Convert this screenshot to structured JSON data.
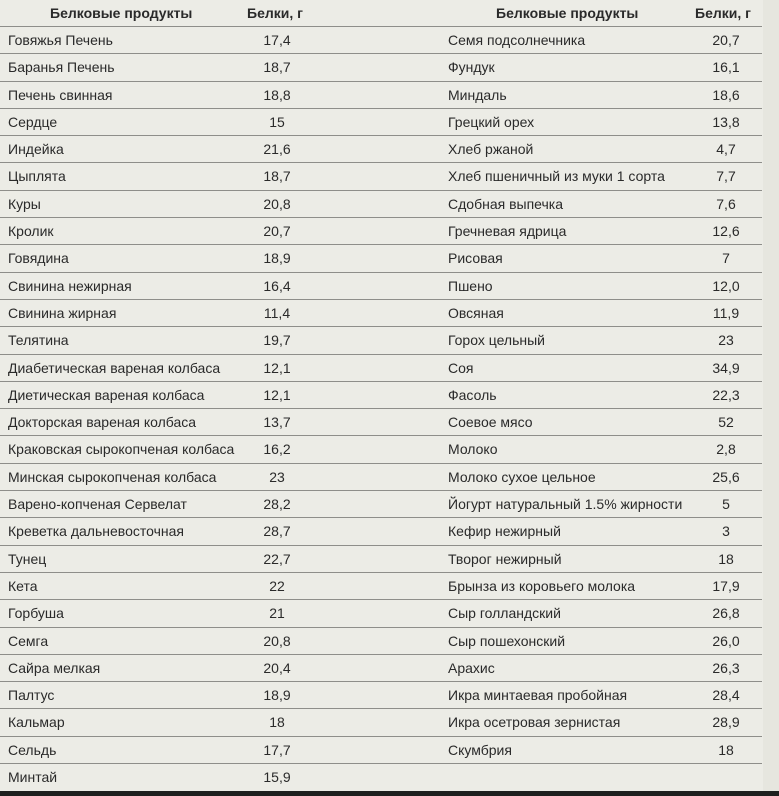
{
  "table": {
    "headers": {
      "left_product": "Белковые продукты",
      "left_protein": "Белки, г",
      "right_product": "Белковые продукты",
      "right_protein": "Белки, г"
    },
    "left": [
      {
        "name": "Говяжья Печень",
        "protein": "17,4"
      },
      {
        "name": "Баранья Печень",
        "protein": "18,7"
      },
      {
        "name": "Печень свинная",
        "protein": "18,8"
      },
      {
        "name": "Сердце",
        "protein": "15"
      },
      {
        "name": "Индейка",
        "protein": "21,6"
      },
      {
        "name": "Цыплята",
        "protein": "18,7"
      },
      {
        "name": "Куры",
        "protein": "20,8"
      },
      {
        "name": "Кролик",
        "protein": "20,7"
      },
      {
        "name": "Говядина",
        "protein": "18,9"
      },
      {
        "name": "Свинина нежирная",
        "protein": "16,4"
      },
      {
        "name": "Свинина жирная",
        "protein": "11,4"
      },
      {
        "name": "Телятина",
        "protein": "19,7"
      },
      {
        "name": "Диабетическая вареная колбаса",
        "protein": "12,1"
      },
      {
        "name": "Диетическая вареная колбаса",
        "protein": "12,1"
      },
      {
        "name": "Докторская вареная колбаса",
        "protein": "13,7"
      },
      {
        "name": "Краковская сырокопченая колбаса",
        "protein": "16,2"
      },
      {
        "name": "Минская сырокопченая колбаса",
        "protein": "23"
      },
      {
        "name": "Варено-копченая Сервелат",
        "protein": "28,2"
      },
      {
        "name": "Креветка дальневосточная",
        "protein": "28,7"
      },
      {
        "name": "Тунец",
        "protein": "22,7"
      },
      {
        "name": "Кета",
        "protein": "22"
      },
      {
        "name": "Горбуша",
        "protein": "21"
      },
      {
        "name": "Семга",
        "protein": "20,8"
      },
      {
        "name": "Сайра мелкая",
        "protein": "20,4"
      },
      {
        "name": "Палтус",
        "protein": "18,9"
      },
      {
        "name": "Кальмар",
        "protein": "18"
      },
      {
        "name": "Сельдь",
        "protein": "17,7"
      },
      {
        "name": "Минтай",
        "protein": "15,9"
      }
    ],
    "right": [
      {
        "name": "Семя подсолнечника",
        "protein": "20,7"
      },
      {
        "name": "Фундук",
        "protein": "16,1"
      },
      {
        "name": "Миндаль",
        "protein": "18,6"
      },
      {
        "name": "Грецкий орех",
        "protein": "13,8"
      },
      {
        "name": "Хлеб ржаной",
        "protein": "4,7"
      },
      {
        "name": "Хлеб пшеничный из муки 1 сорта",
        "protein": "7,7"
      },
      {
        "name": "Сдобная выпечка",
        "protein": "7,6"
      },
      {
        "name": "Гречневая ядрица",
        "protein": "12,6"
      },
      {
        "name": "Рисовая",
        "protein": "7"
      },
      {
        "name": "Пшено",
        "protein": "12,0"
      },
      {
        "name": "Овсяная",
        "protein": "11,9"
      },
      {
        "name": "Горох цельный",
        "protein": "23"
      },
      {
        "name": "Соя",
        "protein": "34,9"
      },
      {
        "name": "Фасоль",
        "protein": "22,3"
      },
      {
        "name": "Соевое мясо",
        "protein": "52"
      },
      {
        "name": "Молоко",
        "protein": "2,8"
      },
      {
        "name": "Молоко сухое цельное",
        "protein": "25,6"
      },
      {
        "name": "Йогурт натуральный 1.5% жирности",
        "protein": "5"
      },
      {
        "name": "Кефир нежирный",
        "protein": "3"
      },
      {
        "name": "Творог нежирный",
        "protein": "18"
      },
      {
        "name": "Брынза из коровьего молока",
        "protein": "17,9"
      },
      {
        "name": "Сыр голландский",
        "protein": "26,8"
      },
      {
        "name": "Сыр пошехонский",
        "protein": "26,0"
      },
      {
        "name": "Арахис",
        "protein": "26,3"
      },
      {
        "name": "Икра минтаевая пробойная",
        "protein": "28,4"
      },
      {
        "name": "Икра осетровая зернистая",
        "protein": "28,9"
      },
      {
        "name": "Скумбрия",
        "protein": "18"
      }
    ]
  }
}
